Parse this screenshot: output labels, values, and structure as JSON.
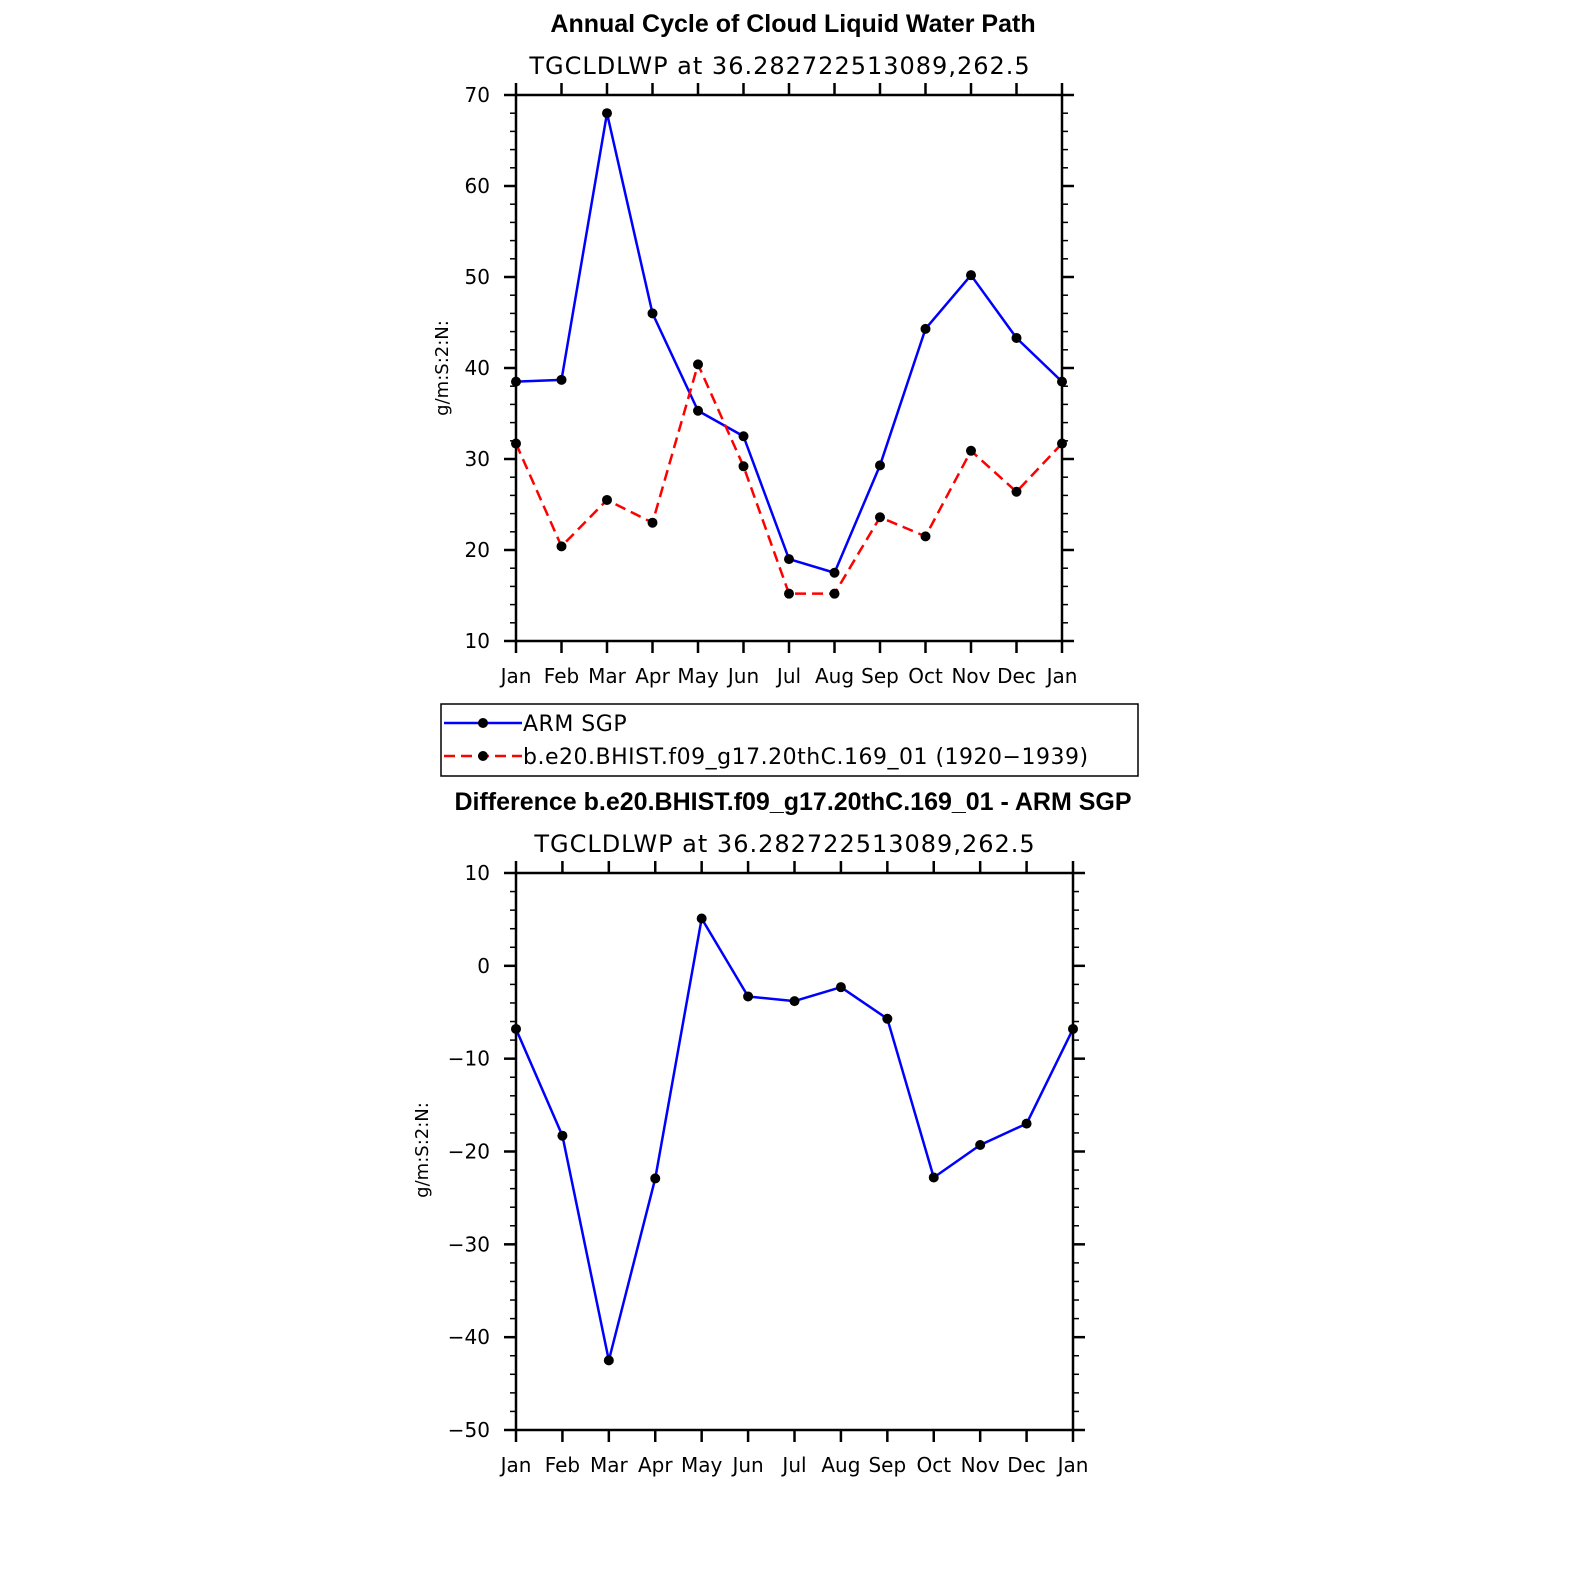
{
  "chart_data": [
    {
      "type": "line",
      "title": "Annual Cycle of Cloud Liquid Water Path",
      "subtitle": "TGCLDLWP at 36.282722513089,262.5",
      "ylabel": "g/m:S:2:N:",
      "xlabel": "",
      "ylim": [
        10,
        70
      ],
      "yticks": [
        10,
        20,
        30,
        40,
        50,
        60,
        70
      ],
      "categories": [
        "Jan",
        "Feb",
        "Mar",
        "Apr",
        "May",
        "Jun",
        "Jul",
        "Aug",
        "Sep",
        "Oct",
        "Nov",
        "Dec",
        "Jan"
      ],
      "grid": false,
      "legend_position": "below",
      "series": [
        {
          "name": "ARM SGP",
          "color": "#0000ff",
          "style": "solid",
          "values": [
            38.5,
            38.7,
            68.0,
            46.0,
            35.3,
            32.5,
            19.0,
            17.5,
            29.3,
            44.3,
            50.2,
            43.3,
            38.5
          ]
        },
        {
          "name": "b.e20.BHIST.f09_g17.20thC.169_01 (1920−1939)",
          "color": "#ff0000",
          "style": "dashed",
          "values": [
            31.7,
            20.4,
            25.5,
            23.0,
            40.4,
            29.2,
            15.2,
            15.2,
            23.6,
            21.5,
            30.9,
            26.4,
            31.7
          ]
        }
      ]
    },
    {
      "type": "line",
      "title": "Difference b.e20.BHIST.f09_g17.20thC.169_01 - ARM SGP",
      "subtitle": "TGCLDLWP at 36.282722513089,262.5",
      "ylabel": "g/m:S:2:N:",
      "xlabel": "",
      "ylim": [
        -50,
        10
      ],
      "yticks": [
        -50,
        -40,
        -30,
        -20,
        -10,
        0,
        10
      ],
      "ytick_labels": [
        "−50",
        "−40",
        "−30",
        "−20",
        "−10",
        "0",
        "10"
      ],
      "categories": [
        "Jan",
        "Feb",
        "Mar",
        "Apr",
        "May",
        "Jun",
        "Jul",
        "Aug",
        "Sep",
        "Oct",
        "Nov",
        "Dec",
        "Jan"
      ],
      "grid": false,
      "series": [
        {
          "color": "#0000ff",
          "style": "solid",
          "values": [
            -6.8,
            -18.3,
            -42.5,
            -22.9,
            5.1,
            -3.3,
            -3.8,
            -2.3,
            -5.7,
            -22.8,
            -19.3,
            -17.0,
            -6.8
          ]
        }
      ]
    }
  ]
}
